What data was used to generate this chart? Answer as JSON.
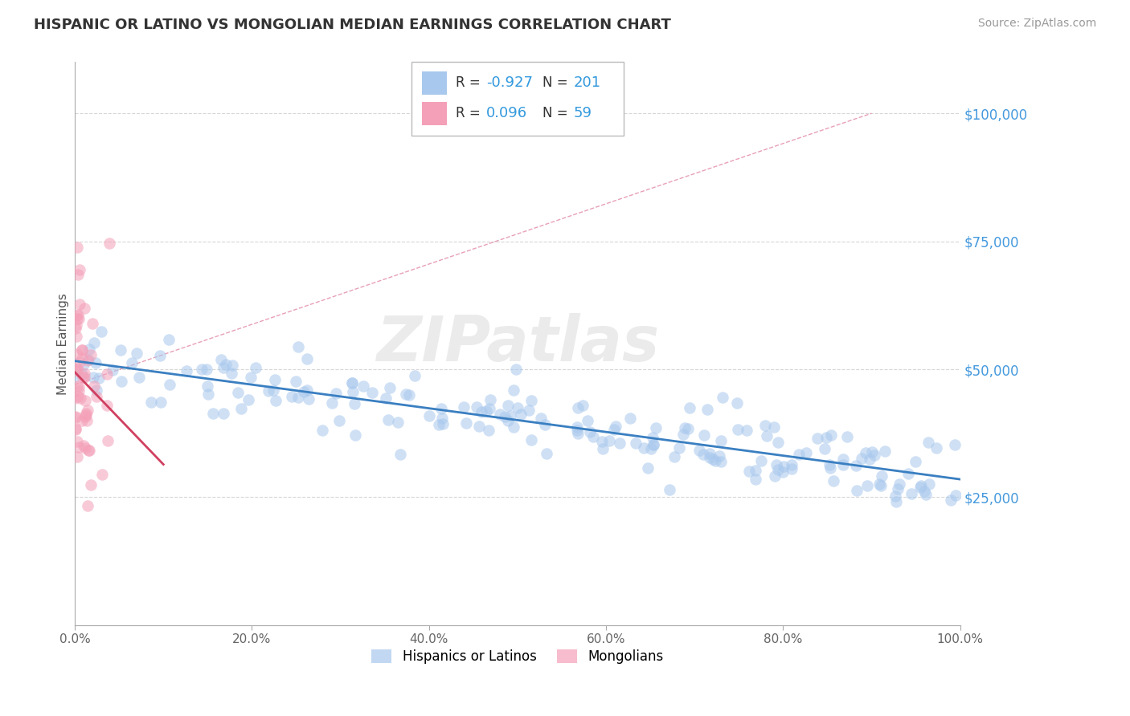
{
  "title": "HISPANIC OR LATINO VS MONGOLIAN MEDIAN EARNINGS CORRELATION CHART",
  "source": "Source: ZipAtlas.com",
  "ylabel": "Median Earnings",
  "xlim": [
    0.0,
    1.0
  ],
  "ylim": [
    0,
    110000
  ],
  "yticks": [
    0,
    25000,
    50000,
    75000,
    100000
  ],
  "ytick_labels": [
    "",
    "$25,000",
    "$50,000",
    "$75,000",
    "$100,000"
  ],
  "xtick_labels": [
    "0.0%",
    "20.0%",
    "40.0%",
    "60.0%",
    "80.0%",
    "100.0%"
  ],
  "xticks": [
    0.0,
    0.2,
    0.4,
    0.6,
    0.8,
    1.0
  ],
  "blue_R": -0.927,
  "blue_N": 201,
  "pink_R": 0.096,
  "pink_N": 59,
  "blue_color": "#A8C8ED",
  "pink_color": "#F4A0B8",
  "blue_line_color": "#3A7FC1",
  "pink_line_color": "#D04060",
  "dashed_line_color": "#E080A0",
  "title_color": "#333333",
  "ylabel_color": "#555555",
  "yaxis_label_color": "#4499DD",
  "source_color": "#999999",
  "legend_text_color": "#333333",
  "legend_value_color": "#3399DD",
  "background_color": "#FFFFFF",
  "grid_color": "#CCCCCC",
  "watermark_color": "#EBEBEB"
}
